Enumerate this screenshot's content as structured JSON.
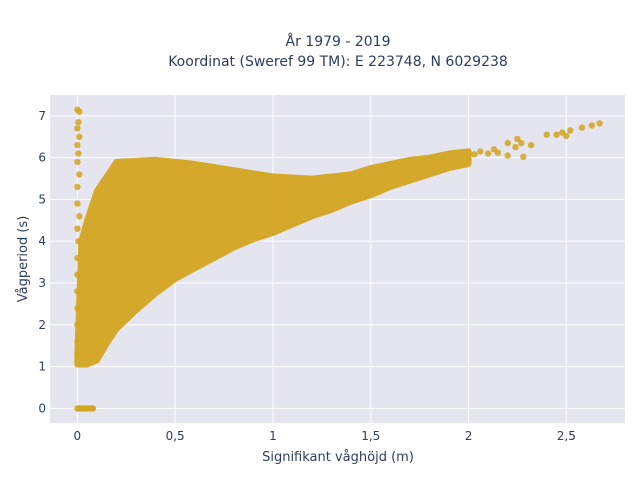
{
  "chart_data": {
    "type": "scatter",
    "title_line1": "År 1979 - 2019",
    "title_line2": "Koordinat (Sweref 99 TM): E 223748, N 6029238",
    "xlabel": "Signifikant våghöjd (m)",
    "ylabel": "Vågperiod (s)",
    "xlim": [
      -0.14,
      2.8
    ],
    "ylim": [
      -0.35,
      7.5
    ],
    "x_ticks": [
      0,
      0.5,
      1,
      1.5,
      2,
      2.5
    ],
    "x_tick_labels": [
      "0",
      "0,5",
      "1",
      "1,5",
      "2",
      "2,5"
    ],
    "y_ticks": [
      0,
      1,
      2,
      3,
      4,
      5,
      6,
      7
    ],
    "y_tick_labels": [
      "0",
      "1",
      "2",
      "3",
      "4",
      "5",
      "6",
      "7"
    ],
    "grid": true,
    "plot_background": "#e5e5ef",
    "marker_color": "#d4a520",
    "point_cloud_outline": [
      [
        0.0,
        1.05
      ],
      [
        0.05,
        1.05
      ],
      [
        0.1,
        1.15
      ],
      [
        0.15,
        1.55
      ],
      [
        0.2,
        1.9
      ],
      [
        0.3,
        2.35
      ],
      [
        0.4,
        2.75
      ],
      [
        0.5,
        3.1
      ],
      [
        0.6,
        3.35
      ],
      [
        0.7,
        3.6
      ],
      [
        0.8,
        3.85
      ],
      [
        0.9,
        4.05
      ],
      [
        1.0,
        4.2
      ],
      [
        1.1,
        4.4
      ],
      [
        1.2,
        4.6
      ],
      [
        1.3,
        4.75
      ],
      [
        1.4,
        4.95
      ],
      [
        1.5,
        5.1
      ],
      [
        1.6,
        5.3
      ],
      [
        1.7,
        5.45
      ],
      [
        1.8,
        5.6
      ],
      [
        1.9,
        5.75
      ],
      [
        2.0,
        5.85
      ],
      [
        2.0,
        6.15
      ],
      [
        1.9,
        6.1
      ],
      [
        1.8,
        6.0
      ],
      [
        1.7,
        5.95
      ],
      [
        1.6,
        5.85
      ],
      [
        1.5,
        5.75
      ],
      [
        1.4,
        5.6
      ],
      [
        1.3,
        5.55
      ],
      [
        1.2,
        5.5
      ],
      [
        1.0,
        5.55
      ],
      [
        0.8,
        5.7
      ],
      [
        0.6,
        5.85
      ],
      [
        0.4,
        5.95
      ],
      [
        0.2,
        5.9
      ],
      [
        0.1,
        5.2
      ],
      [
        0.05,
        4.5
      ],
      [
        0.02,
        4.0
      ],
      [
        0.0,
        1.3
      ]
    ],
    "highlighted_points": [
      {
        "x": 0.0,
        "y": 7.15
      },
      {
        "x": 0.01,
        "y": 7.1
      },
      {
        "x": 0.005,
        "y": 6.85
      },
      {
        "x": 0.0,
        "y": 6.7
      },
      {
        "x": 0.01,
        "y": 6.5
      },
      {
        "x": 0.0,
        "y": 6.3
      },
      {
        "x": 0.005,
        "y": 6.1
      },
      {
        "x": 0.0,
        "y": 5.9
      },
      {
        "x": 0.01,
        "y": 5.6
      },
      {
        "x": 0.0,
        "y": 5.3
      },
      {
        "x": 0.0,
        "y": 4.9
      },
      {
        "x": 0.01,
        "y": 4.6
      },
      {
        "x": 0.0,
        "y": 4.3
      },
      {
        "x": 0.005,
        "y": 4.0
      },
      {
        "x": 0.0,
        "y": 3.6
      },
      {
        "x": 0.0,
        "y": 3.2
      },
      {
        "x": 0.0,
        "y": 2.8
      },
      {
        "x": 0.0,
        "y": 2.4
      },
      {
        "x": 0.0,
        "y": 2.0
      },
      {
        "x": 0.0,
        "y": 1.6
      },
      {
        "x": 0.0,
        "y": 1.3
      },
      {
        "x": 0.0,
        "y": 0.0
      },
      {
        "x": 0.01,
        "y": 0.0
      },
      {
        "x": 0.02,
        "y": 0.0
      },
      {
        "x": 0.03,
        "y": 0.0
      },
      {
        "x": 0.04,
        "y": 0.0
      },
      {
        "x": 0.05,
        "y": 0.0
      },
      {
        "x": 0.06,
        "y": 0.0
      },
      {
        "x": 0.07,
        "y": 0.0
      },
      {
        "x": 0.08,
        "y": 0.0
      },
      {
        "x": 2.03,
        "y": 6.08
      },
      {
        "x": 2.06,
        "y": 6.15
      },
      {
        "x": 2.1,
        "y": 6.1
      },
      {
        "x": 2.13,
        "y": 6.2
      },
      {
        "x": 2.15,
        "y": 6.12
      },
      {
        "x": 2.2,
        "y": 6.35
      },
      {
        "x": 2.2,
        "y": 6.05
      },
      {
        "x": 2.24,
        "y": 6.25
      },
      {
        "x": 2.25,
        "y": 6.45
      },
      {
        "x": 2.27,
        "y": 6.35
      },
      {
        "x": 2.28,
        "y": 6.02
      },
      {
        "x": 2.32,
        "y": 6.3
      },
      {
        "x": 2.4,
        "y": 6.55
      },
      {
        "x": 2.45,
        "y": 6.55
      },
      {
        "x": 2.48,
        "y": 6.6
      },
      {
        "x": 2.5,
        "y": 6.52
      },
      {
        "x": 2.52,
        "y": 6.65
      },
      {
        "x": 2.58,
        "y": 6.72
      },
      {
        "x": 2.63,
        "y": 6.77
      },
      {
        "x": 2.67,
        "y": 6.82
      }
    ]
  }
}
